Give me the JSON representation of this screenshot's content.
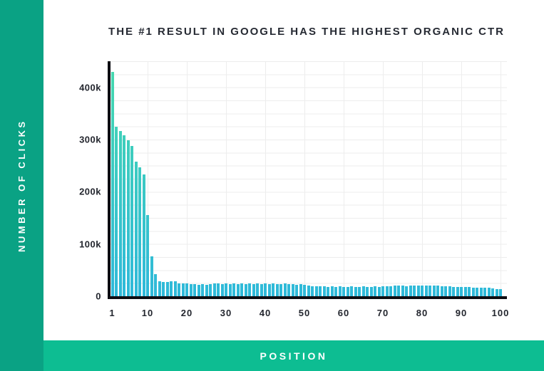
{
  "title": "THE #1 RESULT IN GOOGLE HAS THE HIGHEST ORGANIC CTR",
  "colors": {
    "sidebar_green": "#0aa284",
    "footer_green": "#0dbd92",
    "bar_gradient_top": "#47d9ad",
    "bar_gradient_bottom": "#2fb9da",
    "axis_black": "#0d0d12",
    "gridline_gray": "#ededed",
    "text_dark": "#23262e"
  },
  "y_axis": {
    "label": "NUMBER OF CLICKS",
    "tick_labels": [
      "400k",
      "300k",
      "200k",
      "100k",
      "0"
    ],
    "tick_values_k": [
      400,
      300,
      200,
      100,
      0
    ],
    "gridline_step_k": 25
  },
  "x_axis": {
    "label": "POSITION",
    "tick_labels": [
      "1",
      "10",
      "20",
      "30",
      "40",
      "50",
      "60",
      "70",
      "80",
      "90",
      "100"
    ],
    "tick_positions": [
      1,
      10,
      20,
      30,
      40,
      50,
      60,
      70,
      80,
      90,
      100
    ]
  },
  "chart_data": {
    "type": "bar",
    "title": "THE #1 RESULT IN GOOGLE HAS THE HIGHEST ORGANIC CTR",
    "xlabel": "POSITION",
    "ylabel": "NUMBER OF CLICKS",
    "x_range": [
      1,
      100
    ],
    "ylim_thousands": [
      0,
      450
    ],
    "grid": true,
    "values_unit": "clicks (thousands)",
    "values_thousands": [
      430,
      325,
      317,
      308,
      298,
      288,
      258,
      247,
      233,
      155,
      76,
      42,
      29,
      27,
      27,
      28,
      28,
      25,
      24,
      24,
      23,
      23,
      22,
      23,
      22,
      23,
      24,
      24,
      23,
      24,
      23,
      24,
      23,
      24,
      23,
      24,
      23,
      24,
      23,
      24,
      23,
      24,
      23,
      23,
      24,
      23,
      23,
      22,
      23,
      22,
      20,
      19,
      19,
      19,
      19,
      18,
      19,
      18,
      19,
      18,
      18,
      19,
      18,
      18,
      19,
      18,
      18,
      19,
      18,
      19,
      19,
      19,
      20,
      20,
      20,
      19,
      20,
      20,
      21,
      20,
      21,
      20,
      20,
      20,
      19,
      19,
      19,
      18,
      18,
      18,
      18,
      18,
      17,
      17,
      17,
      17,
      16,
      15,
      14,
      13
    ]
  }
}
